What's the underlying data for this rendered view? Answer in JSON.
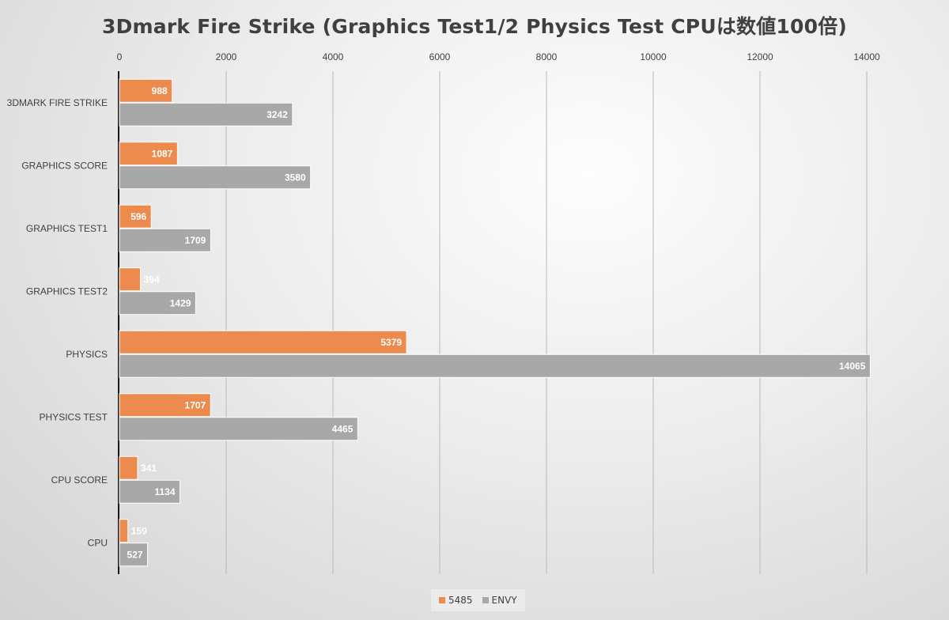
{
  "chart_data": {
    "type": "bar",
    "orientation": "horizontal",
    "title": "3Dmark Fire Strike (Graphics Test1/2 Physics Test CPUは数値100倍)",
    "xlabel": "",
    "ylabel": "",
    "xlim": [
      0,
      14000
    ],
    "x_ticks": [
      0,
      2000,
      4000,
      6000,
      8000,
      10000,
      12000,
      14000
    ],
    "x_axis_position": "top",
    "grid": true,
    "legend_position": "bottom",
    "categories": [
      "3DMARK FIRE STRIKE",
      "GRAPHICS SCORE",
      "GRAPHICS TEST1",
      "GRAPHICS TEST2",
      "PHYSICS",
      "PHYSICS TEST",
      "CPU SCORE",
      "CPU"
    ],
    "series": [
      {
        "name": "5485",
        "color": "#ed8b4f",
        "values": [
          988,
          1087,
          596,
          394,
          5379,
          1707,
          341,
          159
        ]
      },
      {
        "name": "ENVY",
        "color": "#a8a8a8",
        "values": [
          3242,
          3580,
          1709,
          1429,
          14065,
          4465,
          1134,
          527
        ]
      }
    ]
  }
}
